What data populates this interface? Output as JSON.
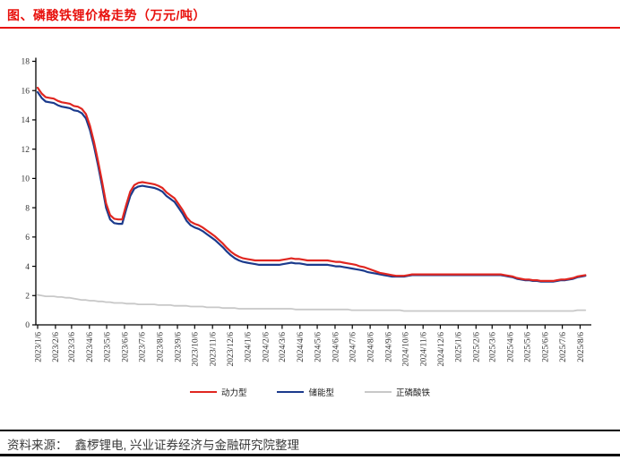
{
  "header": {
    "title": "图、磷酸铁锂价格走势（万元/吨）",
    "accent_color": "#e8110d"
  },
  "chart_data": {
    "type": "line",
    "title": "磷酸铁锂价格走势",
    "unit": "万元/吨",
    "grid": false,
    "legend_position": "bottom",
    "ylim": [
      0,
      18
    ],
    "y_ticks": [
      0,
      2,
      4,
      6,
      8,
      10,
      12,
      14,
      16,
      18
    ],
    "x_start_date": "2023/1/6",
    "x_interval_days": 7,
    "x_tick_labels": [
      "2023/1/6",
      "2023/2/6",
      "2023/3/6",
      "2023/4/6",
      "2023/5/6",
      "2023/6/6",
      "2023/7/6",
      "2023/8/6",
      "2023/9/6",
      "2023/10/6",
      "2023/11/6",
      "2023/12/6",
      "2024/1/6",
      "2024/2/6",
      "2024/3/6",
      "2024/4/6",
      "2024/5/6",
      "2024/6/6",
      "2024/7/6",
      "2024/8/6",
      "2024/9/6",
      "2024/10/6",
      "2024/11/6",
      "2024/12/6",
      "2025/1/6",
      "2025/2/6",
      "2025/3/6",
      "2025/4/6",
      "2025/5/6",
      "2025/6/6",
      "2025/7/6",
      "2025/8/6"
    ],
    "axis_color": "#000000",
    "tick_label_color": "#333333",
    "series": [
      {
        "name": "动力型",
        "color": "#e02620",
        "values": [
          16.2,
          15.8,
          15.55,
          15.5,
          15.45,
          15.3,
          15.2,
          15.15,
          15.1,
          14.95,
          14.9,
          14.75,
          14.4,
          13.6,
          12.5,
          11.2,
          9.8,
          8.3,
          7.5,
          7.25,
          7.2,
          7.2,
          8.2,
          9.1,
          9.55,
          9.7,
          9.75,
          9.7,
          9.65,
          9.6,
          9.5,
          9.35,
          9.05,
          8.85,
          8.65,
          8.25,
          7.85,
          7.35,
          7.05,
          6.9,
          6.8,
          6.65,
          6.45,
          6.25,
          6.05,
          5.8,
          5.55,
          5.25,
          5.0,
          4.8,
          4.65,
          4.55,
          4.5,
          4.45,
          4.4,
          4.4,
          4.4,
          4.4,
          4.4,
          4.4,
          4.4,
          4.45,
          4.5,
          4.55,
          4.5,
          4.5,
          4.45,
          4.4,
          4.4,
          4.4,
          4.4,
          4.4,
          4.4,
          4.35,
          4.3,
          4.3,
          4.25,
          4.2,
          4.15,
          4.1,
          4.0,
          3.95,
          3.85,
          3.75,
          3.65,
          3.55,
          3.5,
          3.45,
          3.4,
          3.35,
          3.35,
          3.35,
          3.4,
          3.45,
          3.45,
          3.45,
          3.45,
          3.45,
          3.45,
          3.45,
          3.45,
          3.45,
          3.45,
          3.45,
          3.45,
          3.45,
          3.45,
          3.45,
          3.45,
          3.45,
          3.45,
          3.45,
          3.45,
          3.45,
          3.45,
          3.45,
          3.4,
          3.35,
          3.3,
          3.2,
          3.15,
          3.1,
          3.1,
          3.05,
          3.05,
          3.0,
          3.0,
          3.0,
          3.0,
          3.05,
          3.1,
          3.1,
          3.15,
          3.2,
          3.3,
          3.35,
          3.4
        ]
      },
      {
        "name": "储能型",
        "color": "#1b3a8c",
        "values": [
          15.9,
          15.5,
          15.25,
          15.2,
          15.15,
          15.0,
          14.9,
          14.85,
          14.8,
          14.65,
          14.6,
          14.45,
          14.1,
          13.3,
          12.2,
          10.9,
          9.5,
          8.0,
          7.2,
          6.95,
          6.9,
          6.9,
          7.9,
          8.8,
          9.3,
          9.45,
          9.5,
          9.45,
          9.4,
          9.35,
          9.25,
          9.1,
          8.8,
          8.6,
          8.4,
          8.0,
          7.6,
          7.1,
          6.8,
          6.65,
          6.55,
          6.4,
          6.2,
          6.0,
          5.8,
          5.55,
          5.3,
          5.0,
          4.75,
          4.55,
          4.4,
          4.3,
          4.25,
          4.2,
          4.15,
          4.1,
          4.1,
          4.1,
          4.1,
          4.1,
          4.1,
          4.15,
          4.2,
          4.25,
          4.2,
          4.2,
          4.15,
          4.1,
          4.1,
          4.1,
          4.1,
          4.1,
          4.1,
          4.05,
          4.0,
          4.0,
          3.95,
          3.9,
          3.85,
          3.8,
          3.75,
          3.7,
          3.6,
          3.55,
          3.5,
          3.45,
          3.4,
          3.35,
          3.3,
          3.3,
          3.3,
          3.3,
          3.35,
          3.4,
          3.4,
          3.4,
          3.4,
          3.4,
          3.4,
          3.4,
          3.4,
          3.4,
          3.4,
          3.4,
          3.4,
          3.4,
          3.4,
          3.4,
          3.4,
          3.4,
          3.4,
          3.4,
          3.4,
          3.4,
          3.4,
          3.4,
          3.35,
          3.3,
          3.25,
          3.15,
          3.1,
          3.05,
          3.05,
          3.0,
          3.0,
          2.95,
          2.95,
          2.95,
          2.95,
          3.0,
          3.05,
          3.05,
          3.1,
          3.15,
          3.25,
          3.3,
          3.35
        ]
      },
      {
        "name": "正磷酸铁",
        "color": "#c8c8c8",
        "values": [
          2.05,
          2.0,
          1.95,
          1.95,
          1.95,
          1.9,
          1.9,
          1.85,
          1.85,
          1.8,
          1.75,
          1.7,
          1.7,
          1.65,
          1.65,
          1.6,
          1.6,
          1.55,
          1.55,
          1.5,
          1.5,
          1.5,
          1.45,
          1.45,
          1.45,
          1.4,
          1.4,
          1.4,
          1.4,
          1.4,
          1.35,
          1.35,
          1.35,
          1.35,
          1.3,
          1.3,
          1.3,
          1.3,
          1.25,
          1.25,
          1.25,
          1.25,
          1.2,
          1.2,
          1.2,
          1.2,
          1.15,
          1.15,
          1.15,
          1.15,
          1.1,
          1.1,
          1.1,
          1.1,
          1.1,
          1.1,
          1.1,
          1.1,
          1.1,
          1.1,
          1.1,
          1.1,
          1.1,
          1.1,
          1.05,
          1.05,
          1.05,
          1.05,
          1.05,
          1.05,
          1.05,
          1.05,
          1.05,
          1.05,
          1.05,
          1.05,
          1.05,
          1.05,
          1.0,
          1.0,
          1.0,
          1.0,
          1.0,
          1.0,
          1.0,
          1.0,
          1.0,
          1.0,
          1.0,
          1.0,
          1.0,
          0.95,
          0.95,
          0.95,
          0.95,
          0.95,
          0.95,
          0.95,
          0.95,
          0.95,
          0.95,
          0.95,
          0.95,
          0.95,
          0.95,
          0.95,
          0.95,
          0.95,
          0.95,
          0.95,
          0.95,
          0.95,
          0.95,
          0.95,
          0.95,
          0.95,
          0.95,
          0.95,
          0.95,
          0.95,
          0.95,
          0.95,
          0.95,
          0.95,
          0.95,
          0.95,
          0.95,
          0.95,
          0.95,
          0.95,
          0.95,
          0.95,
          0.95,
          0.95,
          1.0,
          1.0,
          1.0
        ]
      }
    ]
  },
  "footer": {
    "source_label": "资料来源：",
    "source_text": "鑫椤锂电, 兴业证券经济与金融研究院整理"
  }
}
